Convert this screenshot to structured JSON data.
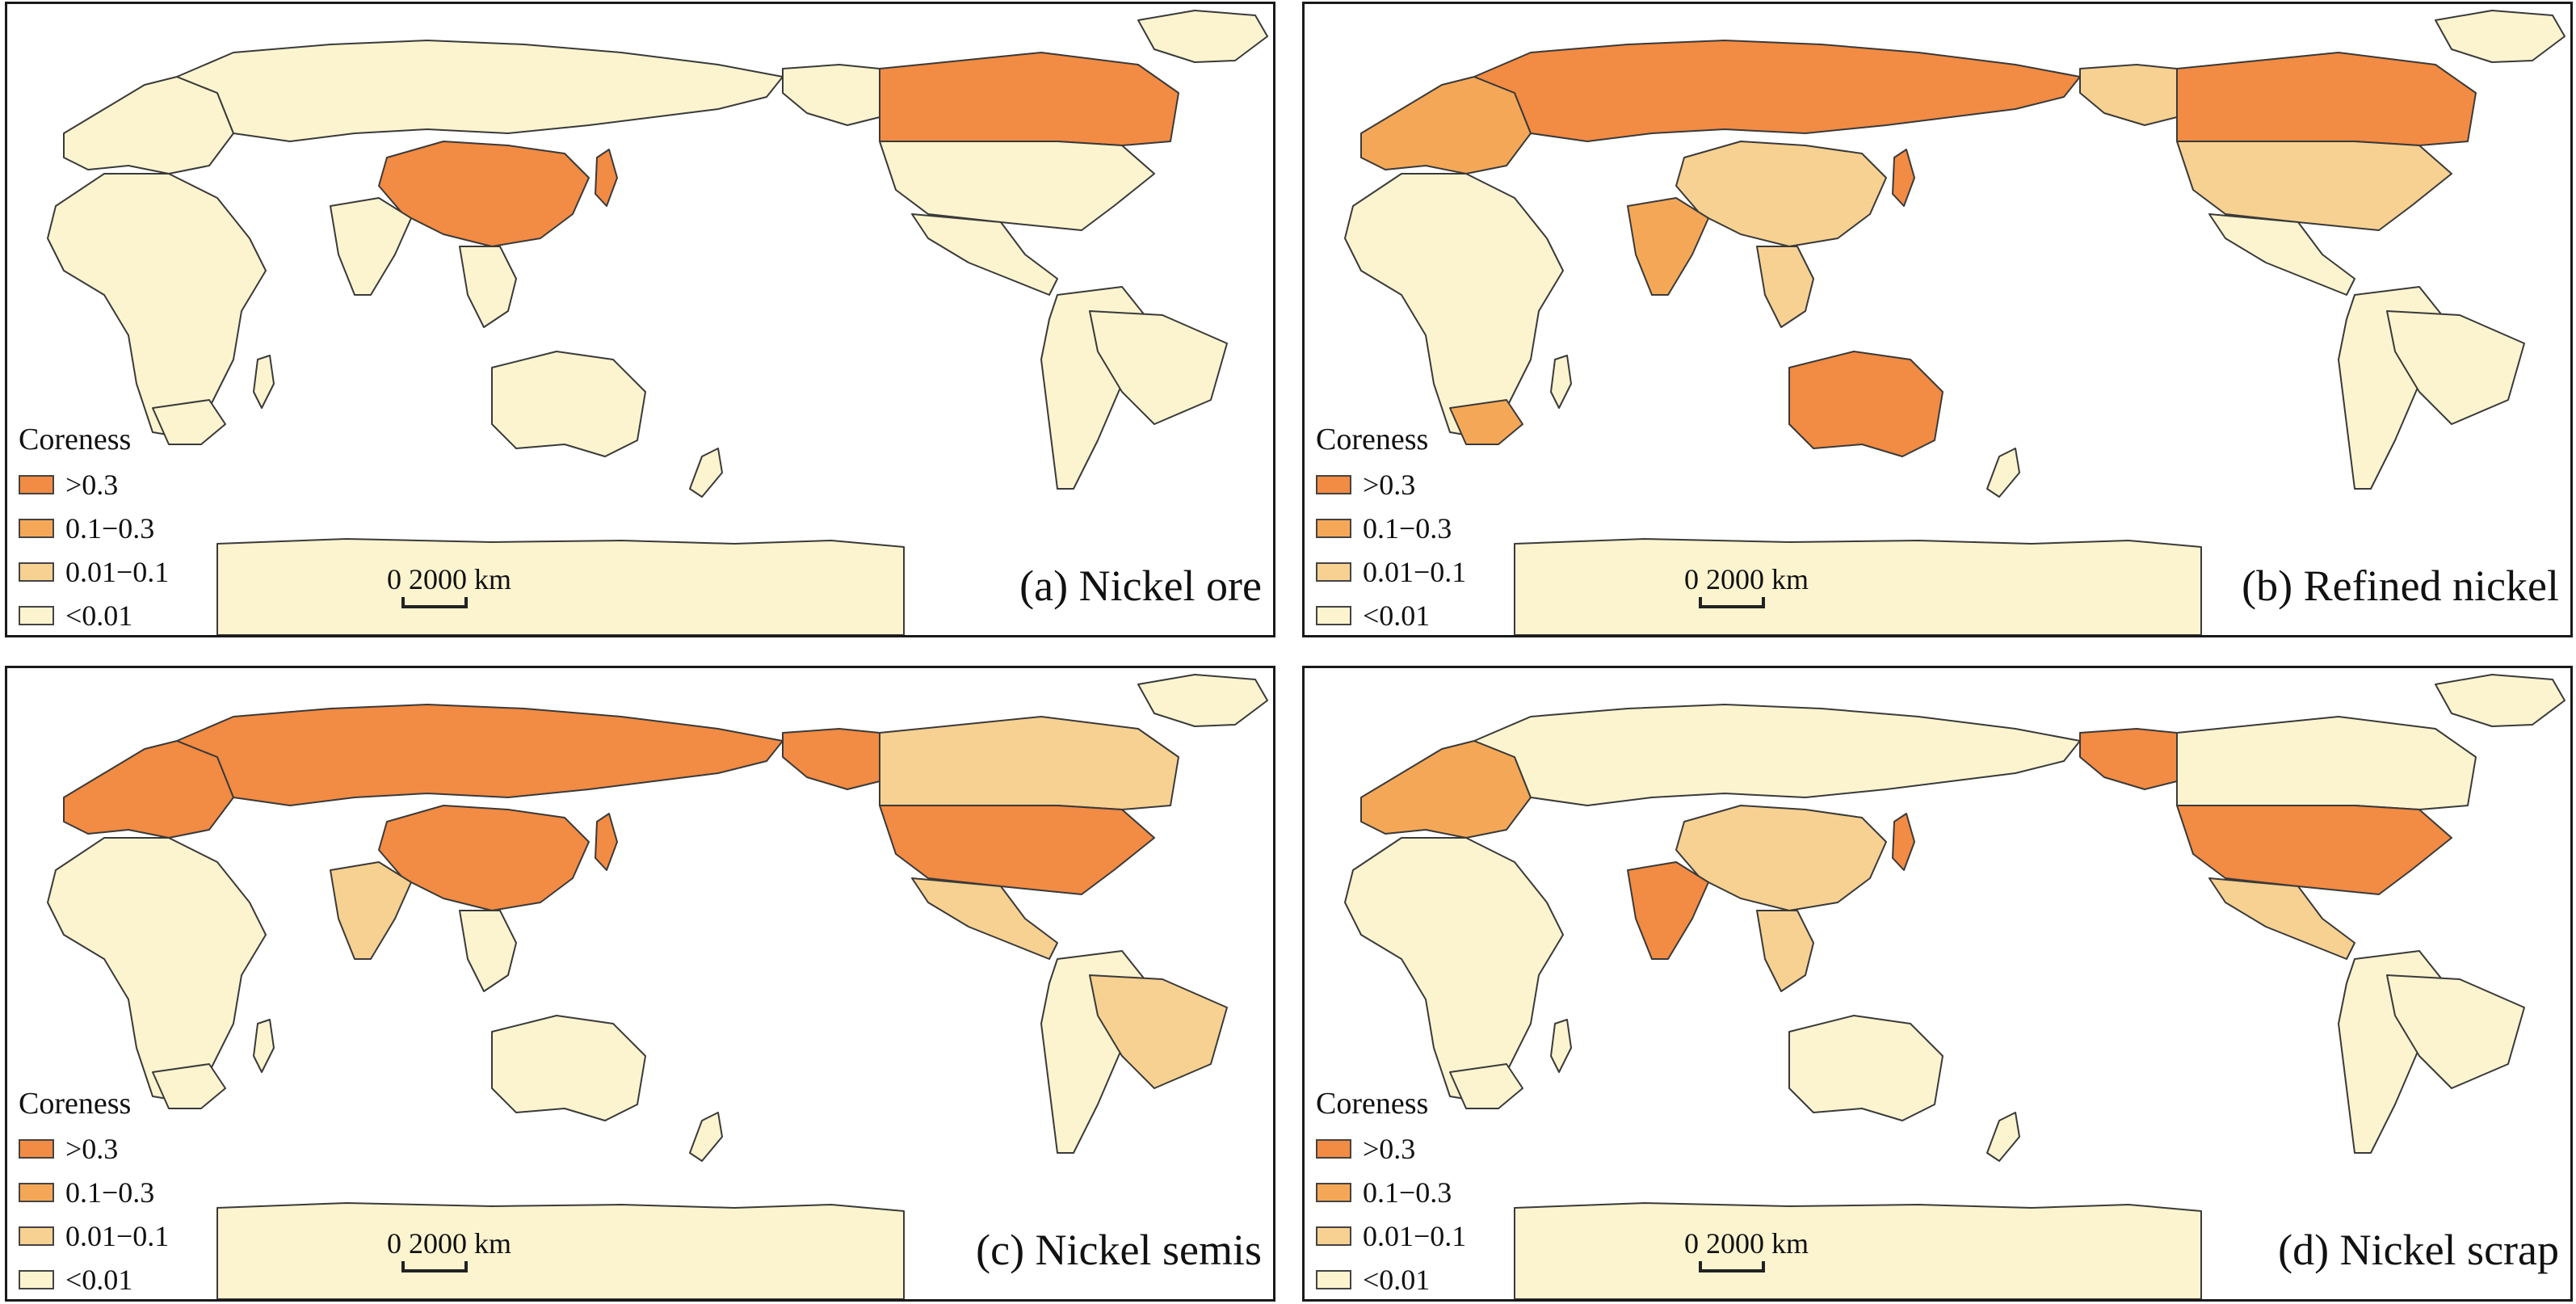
{
  "legend": {
    "title": "Coreness",
    "classes": [
      {
        "label": ">0.3",
        "color": "#f28b43"
      },
      {
        "label": "0.1−0.3",
        "color": "#f4a857"
      },
      {
        "label": "0.01−0.1",
        "color": "#f7d191"
      },
      {
        "label": "<0.01",
        "color": "#fbf4cf"
      }
    ]
  },
  "scale": {
    "label": "0 2000 km"
  },
  "colors": {
    "ocean": "#ffffff",
    "border": "#3a3a3a"
  },
  "panels": [
    {
      "caption": "(a) Nickel ore",
      "regions": {
        "africa": "<0.01",
        "europe": "<0.01",
        "russia": "<0.01",
        "china": ">0.3",
        "india": "<0.01",
        "japan": ">0.3",
        "seasia": "<0.01",
        "australia": "<0.01",
        "canada": ">0.3",
        "usa": "<0.01",
        "mexico": "<0.01",
        "southamerica": "<0.01",
        "southafrica": "<0.01",
        "alaska": "<0.01",
        "brazil": "<0.01"
      }
    },
    {
      "caption": "(b) Refined nickel",
      "regions": {
        "africa": "<0.01",
        "europe": "0.1−0.3",
        "russia": ">0.3",
        "china": "0.01−0.1",
        "india": "0.1−0.3",
        "japan": ">0.3",
        "seasia": "0.01−0.1",
        "australia": ">0.3",
        "canada": ">0.3",
        "usa": "0.01−0.1",
        "mexico": "<0.01",
        "southamerica": "<0.01",
        "southafrica": "0.1−0.3",
        "alaska": "0.01−0.1",
        "brazil": "<0.01"
      }
    },
    {
      "caption": "(c) Nickel semis",
      "regions": {
        "africa": "<0.01",
        "europe": ">0.3",
        "russia": ">0.3",
        "china": ">0.3",
        "india": "0.01−0.1",
        "japan": ">0.3",
        "seasia": "<0.01",
        "australia": "<0.01",
        "canada": "0.01−0.1",
        "usa": ">0.3",
        "mexico": "0.01−0.1",
        "southamerica": "<0.01",
        "southafrica": "<0.01",
        "alaska": ">0.3",
        "brazil": "0.01−0.1"
      }
    },
    {
      "caption": "(d) Nickel scrap",
      "regions": {
        "africa": "<0.01",
        "europe": "0.1−0.3",
        "russia": "<0.01",
        "china": "0.01−0.1",
        "india": ">0.3",
        "japan": ">0.3",
        "seasia": "0.01−0.1",
        "australia": "<0.01",
        "canada": "<0.01",
        "usa": ">0.3",
        "mexico": "0.01−0.1",
        "southamerica": "<0.01",
        "southafrica": "<0.01",
        "alaska": ">0.3",
        "brazil": "<0.01"
      }
    }
  ]
}
